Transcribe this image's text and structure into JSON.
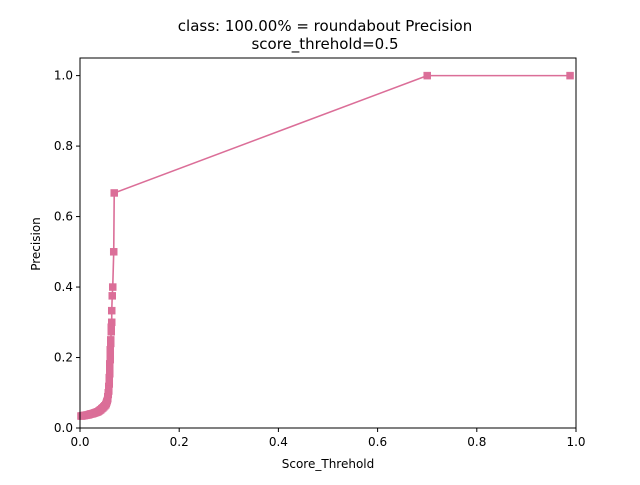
{
  "chart_data": {
    "type": "line",
    "title": "class: 100.00% = roundabout Precision",
    "subtitle": "score_threhold=0.5",
    "xlabel": "Score_Threhold",
    "ylabel": "Precision",
    "xlim": [
      0.0,
      1.0
    ],
    "ylim": [
      0.0,
      1.05
    ],
    "xticks": [
      "0.0",
      "0.2",
      "0.4",
      "0.6",
      "0.8",
      "1.0"
    ],
    "yticks": [
      "0.0",
      "0.2",
      "0.4",
      "0.6",
      "0.8",
      "1.0"
    ],
    "grid": false,
    "marker": "square",
    "color": "#db6e98",
    "x": [
      0.988,
      0.7,
      0.069,
      0.068,
      0.066,
      0.065,
      0.064,
      0.064,
      0.063,
      0.063,
      0.062,
      0.062,
      0.061,
      0.061,
      0.061,
      0.06,
      0.06,
      0.06,
      0.059,
      0.059,
      0.059,
      0.058,
      0.058,
      0.058,
      0.057,
      0.057,
      0.056,
      0.056,
      0.055,
      0.054,
      0.053,
      0.052,
      0.05,
      0.048,
      0.046,
      0.044,
      0.042,
      0.04,
      0.038,
      0.036,
      0.034,
      0.032,
      0.03,
      0.028,
      0.026,
      0.024,
      0.022,
      0.02,
      0.018,
      0.016,
      0.014,
      0.012,
      0.01,
      0.008,
      0.006,
      0.004,
      0.002
    ],
    "y": [
      1.0,
      1.0,
      0.667,
      0.5,
      0.4,
      0.375,
      0.333,
      0.3,
      0.286,
      0.273,
      0.25,
      0.24,
      0.222,
      0.207,
      0.194,
      0.182,
      0.167,
      0.154,
      0.143,
      0.133,
      0.125,
      0.118,
      0.111,
      0.105,
      0.1,
      0.095,
      0.089,
      0.083,
      0.078,
      0.074,
      0.07,
      0.066,
      0.063,
      0.06,
      0.057,
      0.055,
      0.052,
      0.05,
      0.048,
      0.046,
      0.045,
      0.044,
      0.043,
      0.042,
      0.041,
      0.04,
      0.04,
      0.039,
      0.038,
      0.037,
      0.037,
      0.036,
      0.036,
      0.035,
      0.035,
      0.034,
      0.034
    ]
  }
}
